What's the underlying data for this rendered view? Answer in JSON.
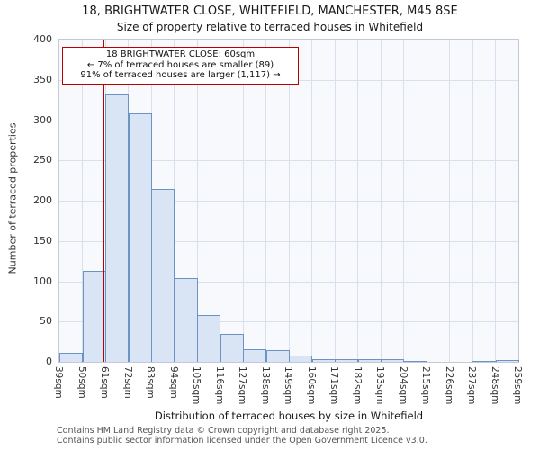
{
  "chart_data": {
    "type": "bar",
    "title": "18, BRIGHTWATER CLOSE, WHITEFIELD, MANCHESTER, M45 8SE",
    "subtitle": "Size of property relative to terraced houses in Whitefield",
    "xlabel": "Distribution of terraced houses by size in Whitefield",
    "ylabel": "Number of terraced properties",
    "ylim": [
      0,
      400
    ],
    "yticks": [
      0,
      50,
      100,
      150,
      200,
      250,
      300,
      350,
      400
    ],
    "grid": true,
    "legend_position": "none",
    "bin_edges_sqm": [
      39,
      50,
      61,
      72,
      83,
      94,
      105,
      116,
      127,
      138,
      149,
      160,
      171,
      182,
      193,
      204,
      215,
      226,
      237,
      248,
      259
    ],
    "tick_labels": [
      "39sqm",
      "50sqm",
      "61sqm",
      "72sqm",
      "83sqm",
      "94sqm",
      "105sqm",
      "116sqm",
      "127sqm",
      "138sqm",
      "149sqm",
      "160sqm",
      "171sqm",
      "182sqm",
      "193sqm",
      "204sqm",
      "215sqm",
      "226sqm",
      "237sqm",
      "248sqm",
      "259sqm"
    ],
    "values": [
      11,
      113,
      332,
      308,
      215,
      104,
      58,
      35,
      16,
      15,
      8,
      3,
      3,
      3,
      3,
      1,
      0,
      0,
      1,
      2
    ],
    "marker": {
      "x_sqm": 60
    },
    "annotation": {
      "line1": "18 BRIGHTWATER CLOSE: 60sqm",
      "line2": "← 7% of terraced houses are smaller (89)",
      "line3": "91% of terraced houses are larger (1,117) →"
    },
    "colors": {
      "bar_fill": "#d9e4f4",
      "bar_stroke": "#6d92c4",
      "grid_line": "#d9e0ec",
      "marker_red": "#bb0000"
    }
  },
  "footer": {
    "line1": "Contains HM Land Registry data © Crown copyright and database right 2025.",
    "line2": "Contains public sector information licensed under the Open Government Licence v3.0."
  }
}
